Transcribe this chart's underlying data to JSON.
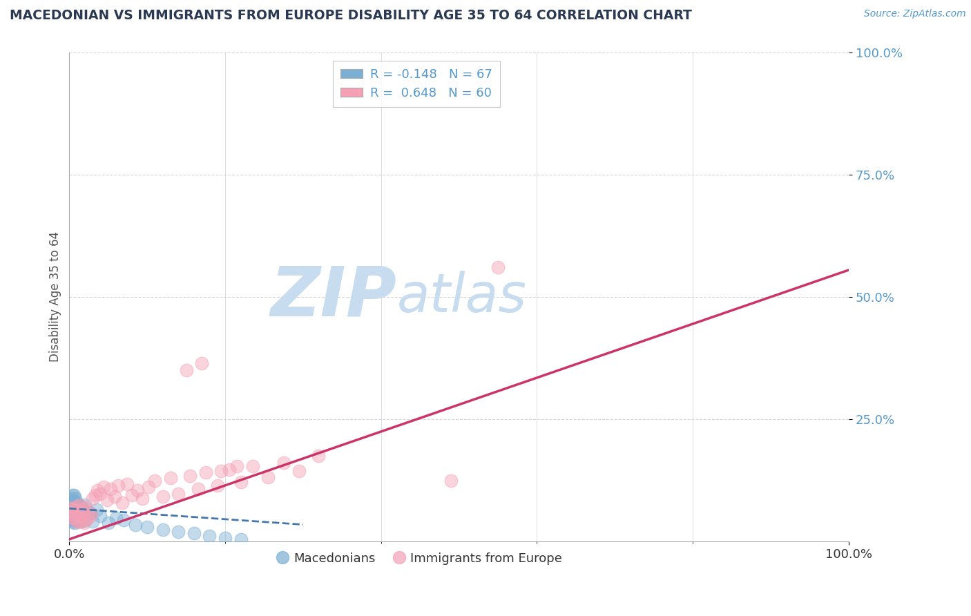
{
  "title": "MACEDONIAN VS IMMIGRANTS FROM EUROPE DISABILITY AGE 35 TO 64 CORRELATION CHART",
  "source_text": "Source: ZipAtlas.com",
  "ylabel": "Disability Age 35 to 64",
  "xlim": [
    0,
    1.0
  ],
  "ylim": [
    0,
    1.0
  ],
  "ytick_labels": [
    "100.0%",
    "75.0%",
    "50.0%",
    "25.0%"
  ],
  "ytick_positions": [
    1.0,
    0.75,
    0.5,
    0.25
  ],
  "legend_r1": "R = -0.148",
  "legend_n1": "N = 67",
  "legend_r2": "R =  0.648",
  "legend_n2": "N = 60",
  "legend_label1": "Macedonians",
  "legend_label2": "Immigrants from Europe",
  "color_blue": "#7BAFD4",
  "color_pink": "#F4A0B5",
  "color_trendline_blue": "#4477AA",
  "color_trendline_pink": "#CC3366",
  "watermark_zip": "ZIP",
  "watermark_atlas": "atlas",
  "watermark_color": "#C8DCF0",
  "title_color": "#2B3A52",
  "axis_color": "#888888",
  "tick_color": "#5599CC",
  "background_color": "#FFFFFF",
  "blue_points_x": [
    0.001,
    0.001,
    0.002,
    0.002,
    0.002,
    0.002,
    0.003,
    0.003,
    0.003,
    0.003,
    0.003,
    0.004,
    0.004,
    0.004,
    0.004,
    0.005,
    0.005,
    0.005,
    0.005,
    0.006,
    0.006,
    0.006,
    0.006,
    0.007,
    0.007,
    0.007,
    0.007,
    0.008,
    0.008,
    0.008,
    0.009,
    0.009,
    0.009,
    0.01,
    0.01,
    0.01,
    0.011,
    0.011,
    0.012,
    0.012,
    0.013,
    0.013,
    0.014,
    0.014,
    0.015,
    0.016,
    0.017,
    0.018,
    0.019,
    0.02,
    0.022,
    0.025,
    0.027,
    0.03,
    0.035,
    0.04,
    0.05,
    0.06,
    0.07,
    0.085,
    0.1,
    0.12,
    0.14,
    0.16,
    0.18,
    0.2,
    0.22
  ],
  "blue_points_y": [
    0.06,
    0.08,
    0.055,
    0.07,
    0.065,
    0.085,
    0.052,
    0.068,
    0.075,
    0.09,
    0.045,
    0.062,
    0.078,
    0.055,
    0.095,
    0.048,
    0.066,
    0.08,
    0.04,
    0.045,
    0.062,
    0.078,
    0.095,
    0.048,
    0.067,
    0.082,
    0.038,
    0.05,
    0.069,
    0.088,
    0.043,
    0.063,
    0.079,
    0.044,
    0.058,
    0.076,
    0.046,
    0.072,
    0.049,
    0.068,
    0.051,
    0.074,
    0.042,
    0.066,
    0.057,
    0.071,
    0.054,
    0.064,
    0.043,
    0.076,
    0.055,
    0.06,
    0.058,
    0.042,
    0.065,
    0.053,
    0.039,
    0.048,
    0.044,
    0.035,
    0.03,
    0.025,
    0.02,
    0.018,
    0.012,
    0.008,
    0.005
  ],
  "pink_points_x": [
    0.001,
    0.002,
    0.003,
    0.004,
    0.005,
    0.006,
    0.007,
    0.008,
    0.009,
    0.01,
    0.011,
    0.012,
    0.013,
    0.014,
    0.015,
    0.016,
    0.017,
    0.018,
    0.019,
    0.02,
    0.022,
    0.024,
    0.026,
    0.028,
    0.03,
    0.033,
    0.036,
    0.04,
    0.044,
    0.048,
    0.053,
    0.058,
    0.063,
    0.068,
    0.074,
    0.08,
    0.087,
    0.094,
    0.102,
    0.11,
    0.12,
    0.13,
    0.14,
    0.155,
    0.165,
    0.175,
    0.19,
    0.205,
    0.22,
    0.235,
    0.255,
    0.275,
    0.295,
    0.32,
    0.15,
    0.17,
    0.195,
    0.215,
    0.49,
    0.55
  ],
  "pink_points_y": [
    0.06,
    0.05,
    0.07,
    0.065,
    0.055,
    0.048,
    0.068,
    0.045,
    0.062,
    0.072,
    0.04,
    0.058,
    0.075,
    0.052,
    0.042,
    0.063,
    0.049,
    0.067,
    0.038,
    0.07,
    0.046,
    0.06,
    0.052,
    0.057,
    0.088,
    0.095,
    0.105,
    0.098,
    0.112,
    0.085,
    0.108,
    0.092,
    0.115,
    0.08,
    0.118,
    0.095,
    0.105,
    0.088,
    0.112,
    0.125,
    0.092,
    0.13,
    0.098,
    0.135,
    0.108,
    0.142,
    0.115,
    0.148,
    0.122,
    0.155,
    0.132,
    0.162,
    0.145,
    0.175,
    0.35,
    0.365,
    0.145,
    0.155,
    0.125,
    0.56
  ],
  "blue_trend_x": [
    0.0,
    0.3
  ],
  "blue_trend_y": [
    0.068,
    0.035
  ],
  "pink_trend_x": [
    0.0,
    1.0
  ],
  "pink_trend_y": [
    0.005,
    0.555
  ]
}
